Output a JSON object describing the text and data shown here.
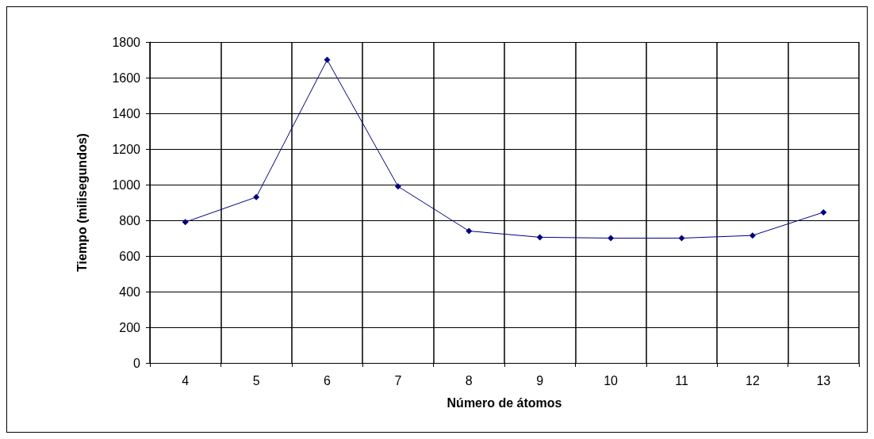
{
  "chart_data": {
    "type": "line",
    "xlabel": "Número de átomos",
    "ylabel": "Tiempo (milisegundos)",
    "categories": [
      "4",
      "5",
      "6",
      "7",
      "8",
      "9",
      "10",
      "11",
      "12",
      "13"
    ],
    "series": [
      {
        "color": "#000080",
        "values": [
          790,
          930,
          1700,
          990,
          740,
          705,
          700,
          700,
          715,
          845
        ]
      }
    ],
    "ylim": [
      0,
      1800
    ],
    "yticks": [
      0,
      200,
      400,
      600,
      800,
      1000,
      1200,
      1400,
      1600,
      1800
    ],
    "grid": true,
    "marker": "diamond",
    "line_style": "solid"
  }
}
